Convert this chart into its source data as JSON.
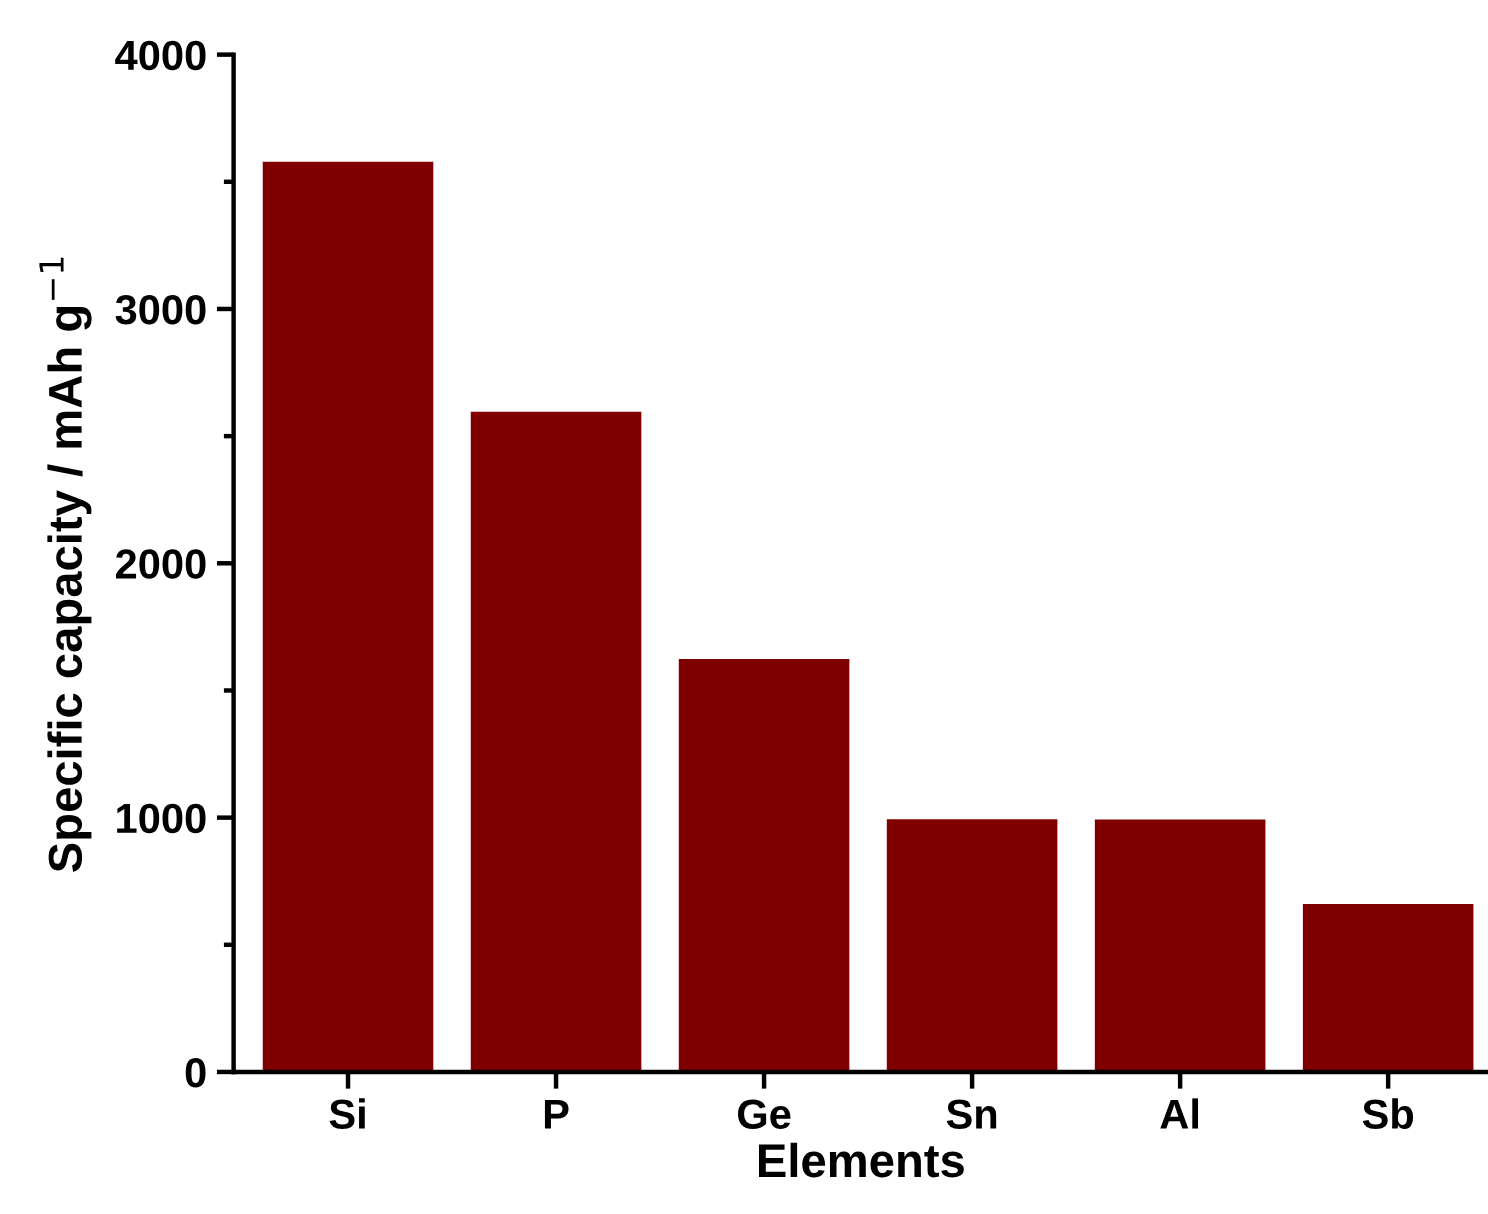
{
  "chart_data": {
    "type": "bar",
    "xlabel": "Elements",
    "ylabel": "Specific capacity / mAh g$^{−1}$",
    "categories": [
      "Si",
      "P",
      "Ge",
      "Sn",
      "Al",
      "Sb"
    ],
    "values": [
      3579,
      2596,
      1624,
      994,
      993,
      660
    ],
    "color": "#800000",
    "ylim": [
      0,
      4000
    ],
    "yticks": [
      0,
      1000,
      2000,
      3000,
      4000
    ],
    "grid": false
  }
}
